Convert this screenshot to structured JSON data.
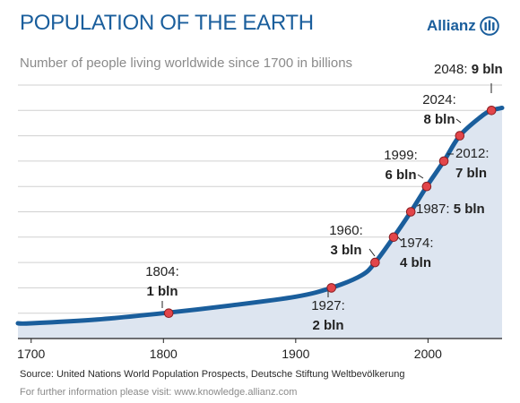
{
  "header": {
    "title": "POPULATION OF THE EARTH",
    "subtitle": "Number of people living worldwide since 1700 in billions",
    "brand": "Allianz",
    "brand_icon": "allianz-eagle-logo-icon"
  },
  "footer": {
    "source": "Source: United Nations World Population Prospects, Deutsche Stiftung Weltbevölkerung",
    "info": "For further information please visit: www.knowledge.allianz.com"
  },
  "colors": {
    "accent": "#1a5e9c",
    "fill": "#dde5f0",
    "marker": "#e2454a",
    "grid": "#d0d0d0"
  },
  "chart_data": {
    "type": "area",
    "title": "POPULATION OF THE EARTH",
    "subtitle": "Number of people living worldwide since 1700 in billions",
    "xlabel": "",
    "ylabel": "",
    "xlim": [
      1690,
      2056
    ],
    "ylim": [
      0,
      10
    ],
    "x_ticks": [
      "1700",
      "1800",
      "1900",
      "2000"
    ],
    "grid": true,
    "legend": "none",
    "series": [
      {
        "x": [
          1690,
          1700,
          1750,
          1800,
          1850,
          1900,
          1927,
          1950,
          1960,
          1974,
          1987,
          1999,
          2012,
          2024,
          2040,
          2048,
          2056
        ],
        "values": [
          0.6,
          0.6,
          0.75,
          1.0,
          1.3,
          1.65,
          2.0,
          2.5,
          3.0,
          4.0,
          5.0,
          6.0,
          7.0,
          8.0,
          8.75,
          9.0,
          9.1
        ]
      }
    ],
    "milestones": [
      {
        "year": 1804,
        "value": 1,
        "label_top": "1804:",
        "label_bottom": "1 bln"
      },
      {
        "year": 1927,
        "value": 2,
        "label_top": "1927:",
        "label_bottom": "2 bln"
      },
      {
        "year": 1960,
        "value": 3,
        "label_top": "1960:",
        "label_bottom": "3 bln"
      },
      {
        "year": 1974,
        "value": 4,
        "label_top": "1974:",
        "label_bottom": "4 bln"
      },
      {
        "year": 1987,
        "value": 5,
        "label_top": "1987:",
        "label_bottom": "5 bln"
      },
      {
        "year": 1999,
        "value": 6,
        "label_top": "1999:",
        "label_bottom": "6 bln"
      },
      {
        "year": 2012,
        "value": 7,
        "label_top": "2012:",
        "label_bottom": "7 bln"
      },
      {
        "year": 2024,
        "value": 8,
        "label_top": "2024:",
        "label_bottom": "8 bln"
      },
      {
        "year": 2048,
        "value": 9,
        "label_top": "2048:",
        "label_bottom": "9 bln"
      }
    ]
  }
}
